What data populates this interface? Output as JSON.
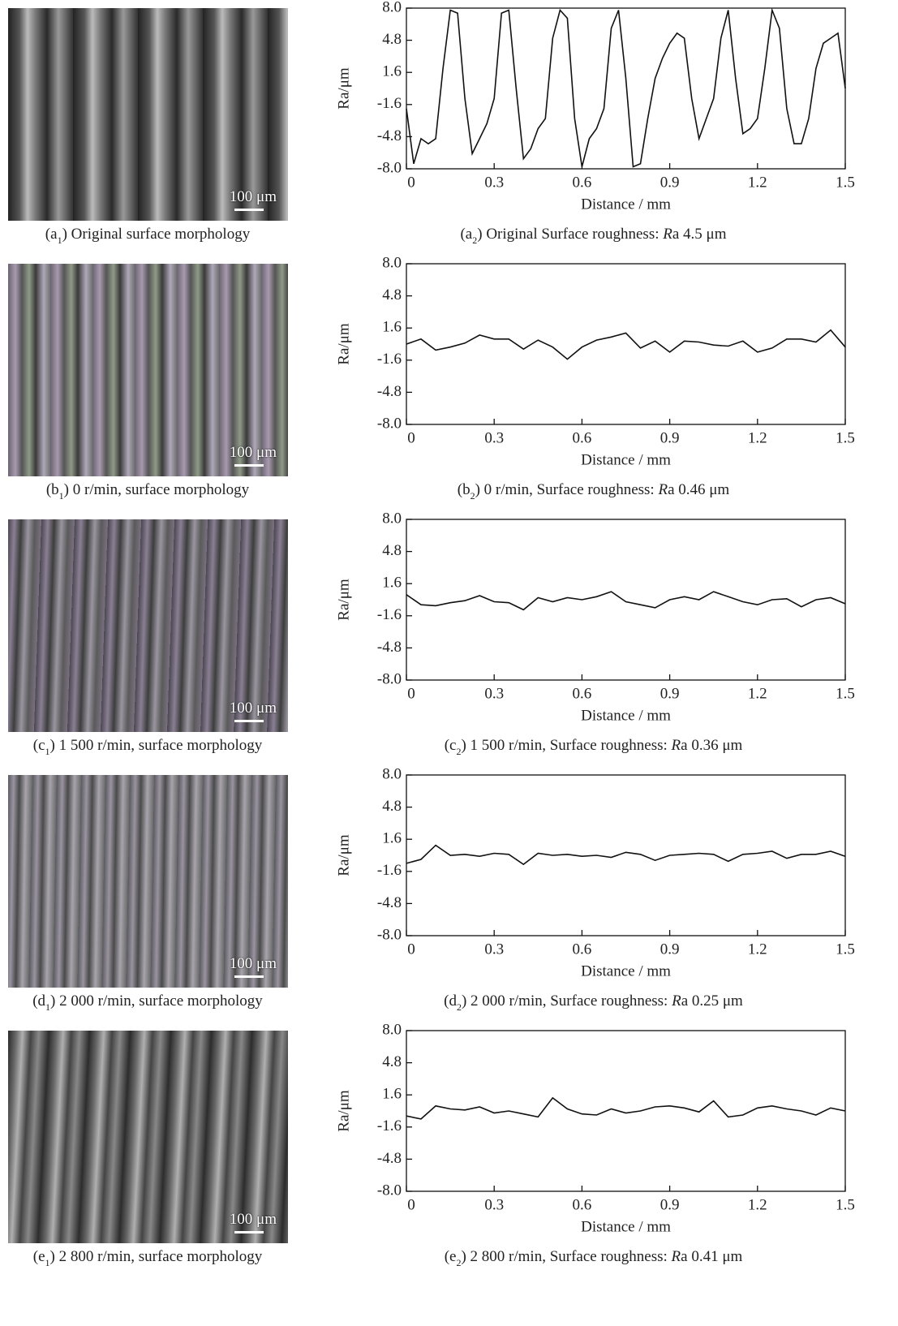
{
  "micrographs": [
    {
      "scale_label": "100 μm",
      "caption": [
        "(a",
        "1",
        ") Original surface morphology"
      ]
    },
    {
      "scale_label": "100 μm",
      "caption": [
        "(b",
        "1",
        ") 0 r/min, surface morphology"
      ]
    },
    {
      "scale_label": "100 μm",
      "caption": [
        "(c",
        "1",
        ") 1 500 r/min, surface morphology"
      ]
    },
    {
      "scale_label": "100 μm",
      "caption": [
        "(d",
        "1",
        ") 2 000 r/min, surface morphology"
      ]
    },
    {
      "scale_label": "100 μm",
      "caption": [
        "(e",
        "1",
        ") 2 800 r/min, surface morphology"
      ]
    }
  ],
  "chart_data": [
    {
      "type": "line",
      "color": "#111111",
      "xlabel": "Distance / mm",
      "ylabel": "Ra/μm",
      "caption": [
        "(a",
        "2",
        ") Original Surface roughness: ",
        "R",
        "a 4.5 μm"
      ],
      "xlim": [
        0,
        1.5
      ],
      "ylim": [
        -8,
        8
      ],
      "xticks": [
        0,
        0.3,
        0.6,
        0.9,
        1.2,
        1.5
      ],
      "yticks": [
        {
          "value": -8,
          "label": "-8.0"
        },
        -4.8,
        -1.6,
        1.6,
        4.8,
        {
          "value": 8,
          "label": "8.0"
        }
      ],
      "x": [
        0,
        0.025,
        0.05,
        0.075,
        0.1,
        0.125,
        0.15,
        0.175,
        0.2,
        0.225,
        0.25,
        0.275,
        0.3,
        0.325,
        0.35,
        0.375,
        0.4,
        0.425,
        0.45,
        0.475,
        0.5,
        0.525,
        0.55,
        0.575,
        0.6,
        0.625,
        0.65,
        0.675,
        0.7,
        0.725,
        0.75,
        0.775,
        0.8,
        0.825,
        0.85,
        0.875,
        0.9,
        0.925,
        0.95,
        0.975,
        1,
        1.025,
        1.05,
        1.075,
        1.1,
        1.125,
        1.15,
        1.175,
        1.2,
        1.225,
        1.25,
        1.275,
        1.3,
        1.325,
        1.35,
        1.375,
        1.4,
        1.425,
        1.45,
        1.475,
        1.5
      ],
      "values": [
        -2,
        -7.5,
        -5,
        -5.5,
        -5,
        2,
        7.8,
        7.5,
        -1,
        -6.5,
        -5,
        -3.5,
        -1,
        7.5,
        7.8,
        0,
        -7,
        -6,
        -4,
        -3,
        5,
        7.8,
        7,
        -3,
        -7.8,
        -5,
        -4,
        -2,
        6,
        7.8,
        1,
        -7.8,
        -7.5,
        -3,
        1,
        3,
        4.5,
        5.5,
        5,
        -1,
        -5,
        -3,
        -1,
        5,
        7.8,
        1,
        -4.5,
        -4,
        -3,
        2,
        7.8,
        6,
        -2,
        -5.5,
        -5.5,
        -3,
        2,
        4.5,
        5,
        5.5,
        0
      ]
    },
    {
      "type": "line",
      "color": "#111111",
      "xlabel": "Distance / mm",
      "ylabel": "Ra/μm",
      "caption": [
        "(b",
        "2",
        ") 0 r/min, Surface roughness: ",
        "R",
        "a 0.46 μm"
      ],
      "xlim": [
        0,
        1.5
      ],
      "ylim": [
        -8,
        8
      ],
      "xticks": [
        0,
        0.3,
        0.6,
        0.9,
        1.2,
        1.5
      ],
      "yticks": [
        {
          "value": -8,
          "label": "-8.0"
        },
        -4.8,
        -1.6,
        1.6,
        4.8,
        {
          "value": 8,
          "label": "8.0"
        }
      ],
      "x": [
        0,
        0.05,
        0.1,
        0.15,
        0.2,
        0.25,
        0.3,
        0.35,
        0.4,
        0.45,
        0.5,
        0.55,
        0.6,
        0.65,
        0.7,
        0.75,
        0.8,
        0.85,
        0.9,
        0.95,
        1,
        1.05,
        1.1,
        1.15,
        1.2,
        1.25,
        1.3,
        1.35,
        1.4,
        1.45,
        1.5
      ],
      "values": [
        0,
        0.5,
        -0.6,
        -0.3,
        0.1,
        0.9,
        0.5,
        0.5,
        -0.5,
        0.4,
        -0.3,
        -1.5,
        -0.3,
        0.4,
        0.7,
        1.1,
        -0.4,
        0.3,
        -0.8,
        0.3,
        0.2,
        -0.1,
        -0.2,
        0.3,
        -0.8,
        -0.4,
        0.5,
        0.5,
        0.2,
        1.4,
        -0.3
      ]
    },
    {
      "type": "line",
      "color": "#111111",
      "xlabel": "Distance / mm",
      "ylabel": "Ra/μm",
      "caption": [
        "(c",
        "2",
        ") 1 500 r/min, Surface roughness: ",
        "R",
        "a 0.36 μm"
      ],
      "xlim": [
        0,
        1.5
      ],
      "ylim": [
        -8,
        8
      ],
      "xticks": [
        0,
        0.3,
        0.6,
        0.9,
        1.2,
        1.5
      ],
      "yticks": [
        {
          "value": -8,
          "label": "-8.0"
        },
        -4.8,
        -1.6,
        1.6,
        4.8,
        {
          "value": 8,
          "label": "8.0"
        }
      ],
      "x": [
        0,
        0.05,
        0.1,
        0.15,
        0.2,
        0.25,
        0.3,
        0.35,
        0.4,
        0.45,
        0.5,
        0.55,
        0.6,
        0.65,
        0.7,
        0.75,
        0.8,
        0.85,
        0.9,
        0.95,
        1,
        1.05,
        1.1,
        1.15,
        1.2,
        1.25,
        1.3,
        1.35,
        1.4,
        1.45,
        1.5
      ],
      "values": [
        0.5,
        -0.5,
        -0.6,
        -0.3,
        -0.1,
        0.4,
        -0.2,
        -0.3,
        -1,
        0.2,
        -0.2,
        0.2,
        0,
        0.3,
        0.8,
        -0.2,
        -0.5,
        -0.8,
        0,
        0.3,
        0,
        0.8,
        0.3,
        -0.2,
        -0.5,
        0,
        0.1,
        -0.7,
        0,
        0.2,
        -0.4
      ]
    },
    {
      "type": "line",
      "color": "#111111",
      "xlabel": "Distance / mm",
      "ylabel": "Ra/μm",
      "caption": [
        "(d",
        "2",
        ") 2 000 r/min, Surface roughness: ",
        "R",
        "a 0.25 μm"
      ],
      "xlim": [
        0,
        1.5
      ],
      "ylim": [
        -8,
        8
      ],
      "xticks": [
        0,
        0.3,
        0.6,
        0.9,
        1.2,
        1.5
      ],
      "yticks": [
        {
          "value": -8,
          "label": "-8.0"
        },
        -4.8,
        -1.6,
        1.6,
        4.8,
        {
          "value": 8,
          "label": "8.0"
        }
      ],
      "x": [
        0,
        0.05,
        0.1,
        0.15,
        0.2,
        0.25,
        0.3,
        0.35,
        0.4,
        0.45,
        0.5,
        0.55,
        0.6,
        0.65,
        0.7,
        0.75,
        0.8,
        0.85,
        0.9,
        0.95,
        1,
        1.05,
        1.1,
        1.15,
        1.2,
        1.25,
        1.3,
        1.35,
        1.4,
        1.45,
        1.5
      ],
      "values": [
        -0.8,
        -0.4,
        1,
        0,
        0.1,
        -0.1,
        0.2,
        0.1,
        -0.9,
        0.2,
        0,
        0.1,
        -0.1,
        0,
        -0.2,
        0.3,
        0.1,
        -0.5,
        0,
        0.1,
        0.2,
        0.1,
        -0.6,
        0.1,
        0.2,
        0.4,
        -0.3,
        0.1,
        0.1,
        0.4,
        -0.1
      ]
    },
    {
      "type": "line",
      "color": "#111111",
      "xlabel": "Distance / mm",
      "ylabel": "Ra/μm",
      "caption": [
        "(e",
        "2",
        ") 2 800 r/min, Surface roughness: ",
        "R",
        "a 0.41 μm"
      ],
      "xlim": [
        0,
        1.5
      ],
      "ylim": [
        -8,
        8
      ],
      "xticks": [
        0,
        0.3,
        0.6,
        0.9,
        1.2,
        1.5
      ],
      "yticks": [
        {
          "value": -8,
          "label": "-8.0"
        },
        -4.8,
        -1.6,
        1.6,
        4.8,
        {
          "value": 8,
          "label": "8.0"
        }
      ],
      "x": [
        0,
        0.05,
        0.1,
        0.15,
        0.2,
        0.25,
        0.3,
        0.35,
        0.4,
        0.45,
        0.5,
        0.55,
        0.6,
        0.65,
        0.7,
        0.75,
        0.8,
        0.85,
        0.9,
        0.95,
        1,
        1.05,
        1.1,
        1.15,
        1.2,
        1.25,
        1.3,
        1.35,
        1.4,
        1.45,
        1.5
      ],
      "values": [
        -0.5,
        -0.8,
        0.5,
        0.2,
        0.1,
        0.4,
        -0.2,
        0,
        -0.3,
        -0.6,
        1.3,
        0.2,
        -0.3,
        -0.4,
        0.2,
        -0.2,
        0,
        0.4,
        0.5,
        0.3,
        -0.1,
        1,
        -0.6,
        -0.4,
        0.3,
        0.5,
        0.2,
        0,
        -0.4,
        0.3,
        0
      ]
    }
  ]
}
